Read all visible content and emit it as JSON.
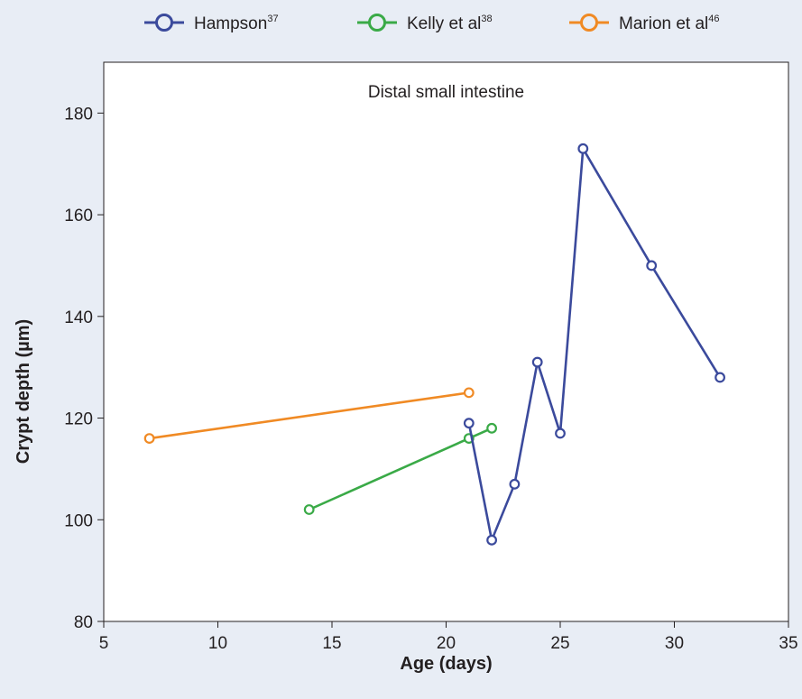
{
  "chart_data": {
    "type": "line",
    "annotation": "Distal small intestine",
    "xlabel": "Age (days)",
    "ylabel": "Crypt depth (µm)",
    "xlim": [
      5,
      35
    ],
    "ylim": [
      80,
      190
    ],
    "xticks": [
      5,
      10,
      15,
      20,
      25,
      30,
      35
    ],
    "yticks": [
      80,
      100,
      120,
      140,
      160,
      180
    ],
    "grid": false,
    "legend_position": "top",
    "series": [
      {
        "name": "Hampson",
        "superscript": "37",
        "color": "#3b4a9c",
        "x": [
          21,
          22,
          23,
          24,
          25,
          26,
          29,
          32
        ],
        "y": [
          119,
          96,
          107,
          131,
          117,
          173,
          150,
          128
        ]
      },
      {
        "name": "Kelly et al",
        "superscript": "38",
        "color": "#3aaa47",
        "x": [
          14,
          21,
          22
        ],
        "y": [
          102,
          116,
          118
        ]
      },
      {
        "name": "Marion et al",
        "superscript": "46",
        "color": "#f08a24",
        "x": [
          7,
          21
        ],
        "y": [
          116,
          125
        ]
      }
    ]
  },
  "colors": {
    "background": "#e8edf5",
    "plot_background": "#ffffff",
    "axis": "#231f20"
  }
}
